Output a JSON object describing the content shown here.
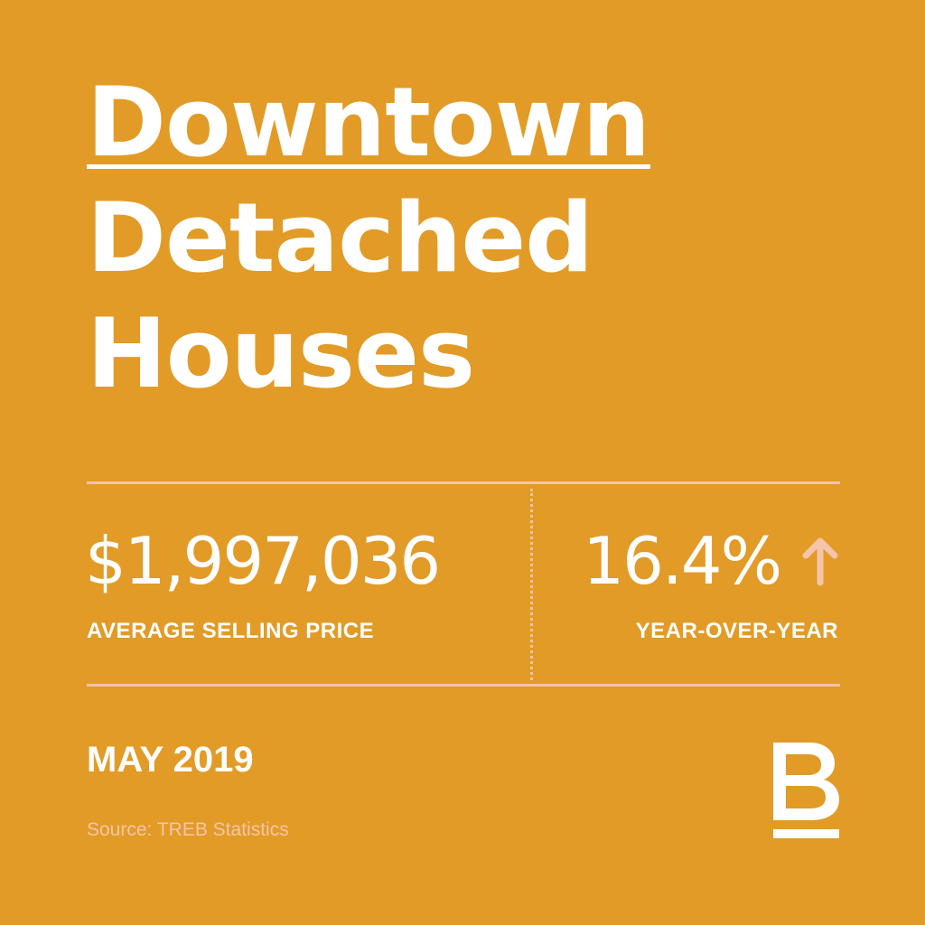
{
  "headline": {
    "line1": "Downtown",
    "line2": "Detached",
    "line3": "Houses"
  },
  "stats": {
    "price": {
      "value": "$1,997,036",
      "label": "AVERAGE SELLING PRICE"
    },
    "change": {
      "value": "16.4%",
      "label": "YEAR-OVER-YEAR",
      "direction_icon": "arrow-up-icon"
    }
  },
  "footer": {
    "date": "MAY 2019",
    "source": "Source: TREB Statistics"
  },
  "brand": {
    "logo_icon": "brand-b-logo-icon"
  },
  "colors": {
    "background": "#e29b27",
    "text": "#ffffff",
    "accent": "#f6c4a9"
  }
}
